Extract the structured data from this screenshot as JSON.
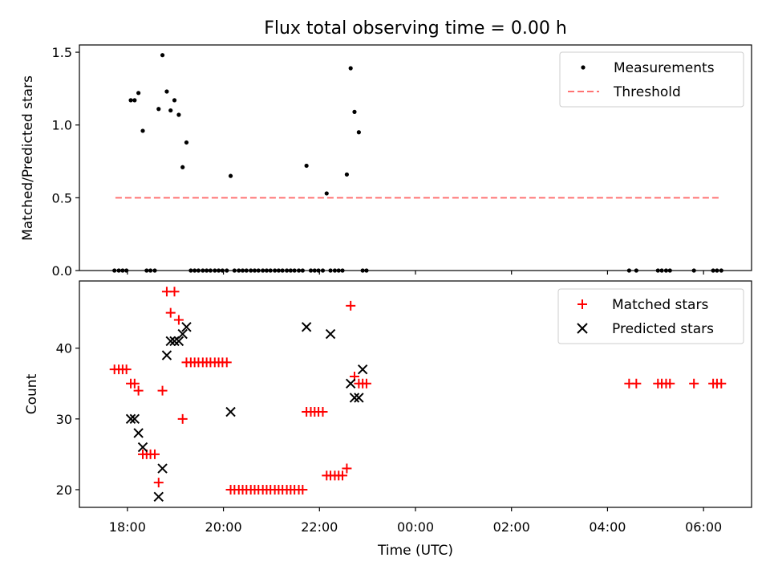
{
  "title": "Flux total observing time = 0.00 h",
  "chart_data": [
    {
      "type": "scatter",
      "ylabel": "Matched/Predicted stars",
      "xlabel": "",
      "xlim_hours": [
        17.0,
        31.0
      ],
      "ylim": [
        0.0,
        1.55
      ],
      "yticks": [
        0.0,
        0.5,
        1.0,
        1.5
      ],
      "ytick_labels": [
        "0.0",
        "0.5",
        "1.0",
        "1.5"
      ],
      "legend": {
        "placement": "upper-right",
        "entries": [
          "Measurements",
          "Threshold"
        ]
      },
      "colors": {
        "measurements": "#000000",
        "threshold": "#ff7373"
      },
      "threshold": {
        "name": "Threshold",
        "y": 0.5,
        "x_range_hours": [
          17.75,
          30.33
        ]
      },
      "measurements": {
        "name": "Measurements",
        "x_hours": [
          17.73,
          17.82,
          17.9,
          17.98,
          18.07,
          18.15,
          18.23,
          18.32,
          18.4,
          18.48,
          18.57,
          18.65,
          18.73,
          18.82,
          18.9,
          18.98,
          19.07,
          19.15,
          19.23,
          19.32,
          19.4,
          19.48,
          19.57,
          19.65,
          19.73,
          19.82,
          19.9,
          19.98,
          20.07,
          20.15,
          20.23,
          20.32,
          20.4,
          20.48,
          20.57,
          20.65,
          20.73,
          20.82,
          20.9,
          20.98,
          21.07,
          21.15,
          21.23,
          21.32,
          21.4,
          21.48,
          21.57,
          21.65,
          21.73,
          21.82,
          21.9,
          21.98,
          22.07,
          22.15,
          22.23,
          22.32,
          22.4,
          22.48,
          22.57,
          22.65,
          22.73,
          22.82,
          22.9,
          22.98,
          28.45,
          28.6,
          29.05,
          29.13,
          29.22,
          29.3,
          29.8,
          30.2,
          30.28,
          30.37
        ],
        "y": [
          0,
          0,
          0,
          0,
          1.17,
          1.17,
          1.22,
          0.96,
          0,
          0,
          0,
          1.11,
          1.48,
          1.23,
          1.1,
          1.17,
          1.07,
          0.71,
          0.88,
          0,
          0,
          0,
          0,
          0,
          0,
          0,
          0,
          0,
          0,
          0.65,
          0,
          0,
          0,
          0,
          0,
          0,
          0,
          0,
          0,
          0,
          0,
          0,
          0,
          0,
          0,
          0,
          0,
          0,
          0.72,
          0,
          0,
          0,
          0,
          0.53,
          0,
          0,
          0,
          0,
          0.66,
          1.39,
          1.09,
          0.95,
          0,
          0,
          0,
          0,
          0,
          0,
          0,
          0,
          0,
          0,
          0,
          0
        ]
      }
    },
    {
      "type": "scatter",
      "ylabel": "Count",
      "xlabel": "Time (UTC)",
      "xlim_hours": [
        17.0,
        31.0
      ],
      "ylim": [
        17.5,
        49.5
      ],
      "yticks": [
        20,
        30,
        40
      ],
      "ytick_labels": [
        "20",
        "30",
        "40"
      ],
      "xticks_hours": [
        18,
        20,
        22,
        24,
        26,
        28,
        30
      ],
      "xtick_labels": [
        "18:00",
        "20:00",
        "22:00",
        "00:00",
        "02:00",
        "04:00",
        "06:00"
      ],
      "legend": {
        "placement": "upper-right",
        "entries": [
          "Matched stars",
          "Predicted stars"
        ]
      },
      "colors": {
        "matched": "#ff0000",
        "predicted": "#000000"
      },
      "series": [
        {
          "name": "Matched stars",
          "marker": "plus",
          "x_hours": [
            17.73,
            17.82,
            17.9,
            17.98,
            18.07,
            18.15,
            18.23,
            18.32,
            18.4,
            18.48,
            18.57,
            18.65,
            18.73,
            18.82,
            18.9,
            18.98,
            19.07,
            19.15,
            19.23,
            19.32,
            19.4,
            19.48,
            19.57,
            19.65,
            19.73,
            19.82,
            19.9,
            19.98,
            20.07,
            20.15,
            20.23,
            20.32,
            20.4,
            20.48,
            20.57,
            20.65,
            20.73,
            20.82,
            20.9,
            20.98,
            21.07,
            21.15,
            21.23,
            21.32,
            21.4,
            21.48,
            21.57,
            21.65,
            21.73,
            21.82,
            21.9,
            21.98,
            22.07,
            22.15,
            22.23,
            22.32,
            22.4,
            22.48,
            22.57,
            22.65,
            22.73,
            22.82,
            22.9,
            22.98,
            28.45,
            28.6,
            29.05,
            29.13,
            29.22,
            29.3,
            29.8,
            30.2,
            30.28,
            30.37
          ],
          "y": [
            37,
            37,
            37,
            37,
            35,
            35,
            34,
            25,
            25,
            25,
            25,
            21,
            34,
            48,
            45,
            48,
            44,
            30,
            38,
            38,
            38,
            38,
            38,
            38,
            38,
            38,
            38,
            38,
            38,
            20,
            20,
            20,
            20,
            20,
            20,
            20,
            20,
            20,
            20,
            20,
            20,
            20,
            20,
            20,
            20,
            20,
            20,
            20,
            31,
            31,
            31,
            31,
            31,
            22,
            22,
            22,
            22,
            22,
            23,
            46,
            36,
            35,
            35,
            35,
            35,
            35,
            35,
            35,
            35,
            35,
            35,
            35,
            35,
            35
          ]
        },
        {
          "name": "Predicted stars",
          "marker": "x",
          "x_hours": [
            18.07,
            18.15,
            18.23,
            18.32,
            18.65,
            18.73,
            18.82,
            18.9,
            18.98,
            19.07,
            19.15,
            19.23,
            20.15,
            21.73,
            22.23,
            22.65,
            22.73,
            22.82,
            22.9
          ],
          "y": [
            30,
            30,
            28,
            26,
            19,
            23,
            39,
            41,
            41,
            41,
            42,
            43,
            31,
            43,
            42,
            35,
            33,
            33,
            37
          ]
        }
      ]
    }
  ]
}
